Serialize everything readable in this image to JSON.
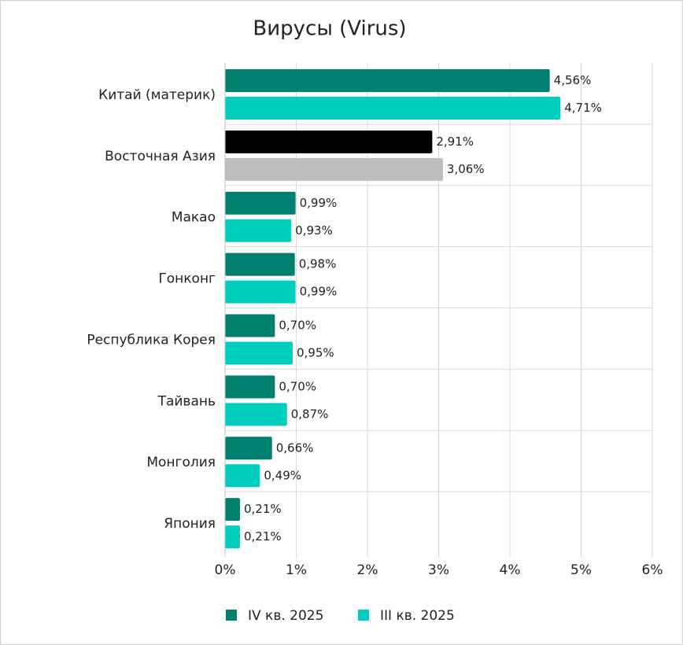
{
  "chart_data": {
    "type": "bar",
    "orientation": "horizontal",
    "title": "Вирусы (Virus)",
    "categories": [
      "Китай (материк)",
      "Восточная Азия",
      "Макао",
      "Гонконг",
      "Республика Корея",
      "Тайвань",
      "Монголия",
      "Япония"
    ],
    "series": [
      {
        "name": "IV кв. 2025",
        "color": "#008070",
        "colors": [
          "#008070",
          "#000000",
          "#008070",
          "#008070",
          "#008070",
          "#008070",
          "#008070",
          "#008070"
        ],
        "values": [
          4.56,
          2.91,
          0.99,
          0.98,
          0.7,
          0.7,
          0.66,
          0.21
        ],
        "value_labels": [
          "4,56%",
          "2,91%",
          "0,99%",
          "0,98%",
          "0,70%",
          "0,70%",
          "0,66%",
          "0,21%"
        ]
      },
      {
        "name": "III кв. 2025",
        "color": "#00cfc0",
        "colors": [
          "#00cfc0",
          "#bdbdbd",
          "#00cfc0",
          "#00cfc0",
          "#00cfc0",
          "#00cfc0",
          "#00cfc0",
          "#00cfc0"
        ],
        "values": [
          4.71,
          3.06,
          0.93,
          0.99,
          0.95,
          0.87,
          0.49,
          0.21
        ],
        "value_labels": [
          "4,71%",
          "3,06%",
          "0,93%",
          "0,99%",
          "0,95%",
          "0,87%",
          "0,49%",
          "0,21%"
        ]
      }
    ],
    "xlim": [
      0,
      6
    ],
    "xticks": [
      {
        "value": 0,
        "label": "0%"
      },
      {
        "value": 1,
        "label": "1%"
      },
      {
        "value": 2,
        "label": "2%"
      },
      {
        "value": 3,
        "label": "3%"
      },
      {
        "value": 4,
        "label": "4%"
      },
      {
        "value": 5,
        "label": "5%"
      },
      {
        "value": 6,
        "label": "6%"
      }
    ],
    "grid": true
  }
}
